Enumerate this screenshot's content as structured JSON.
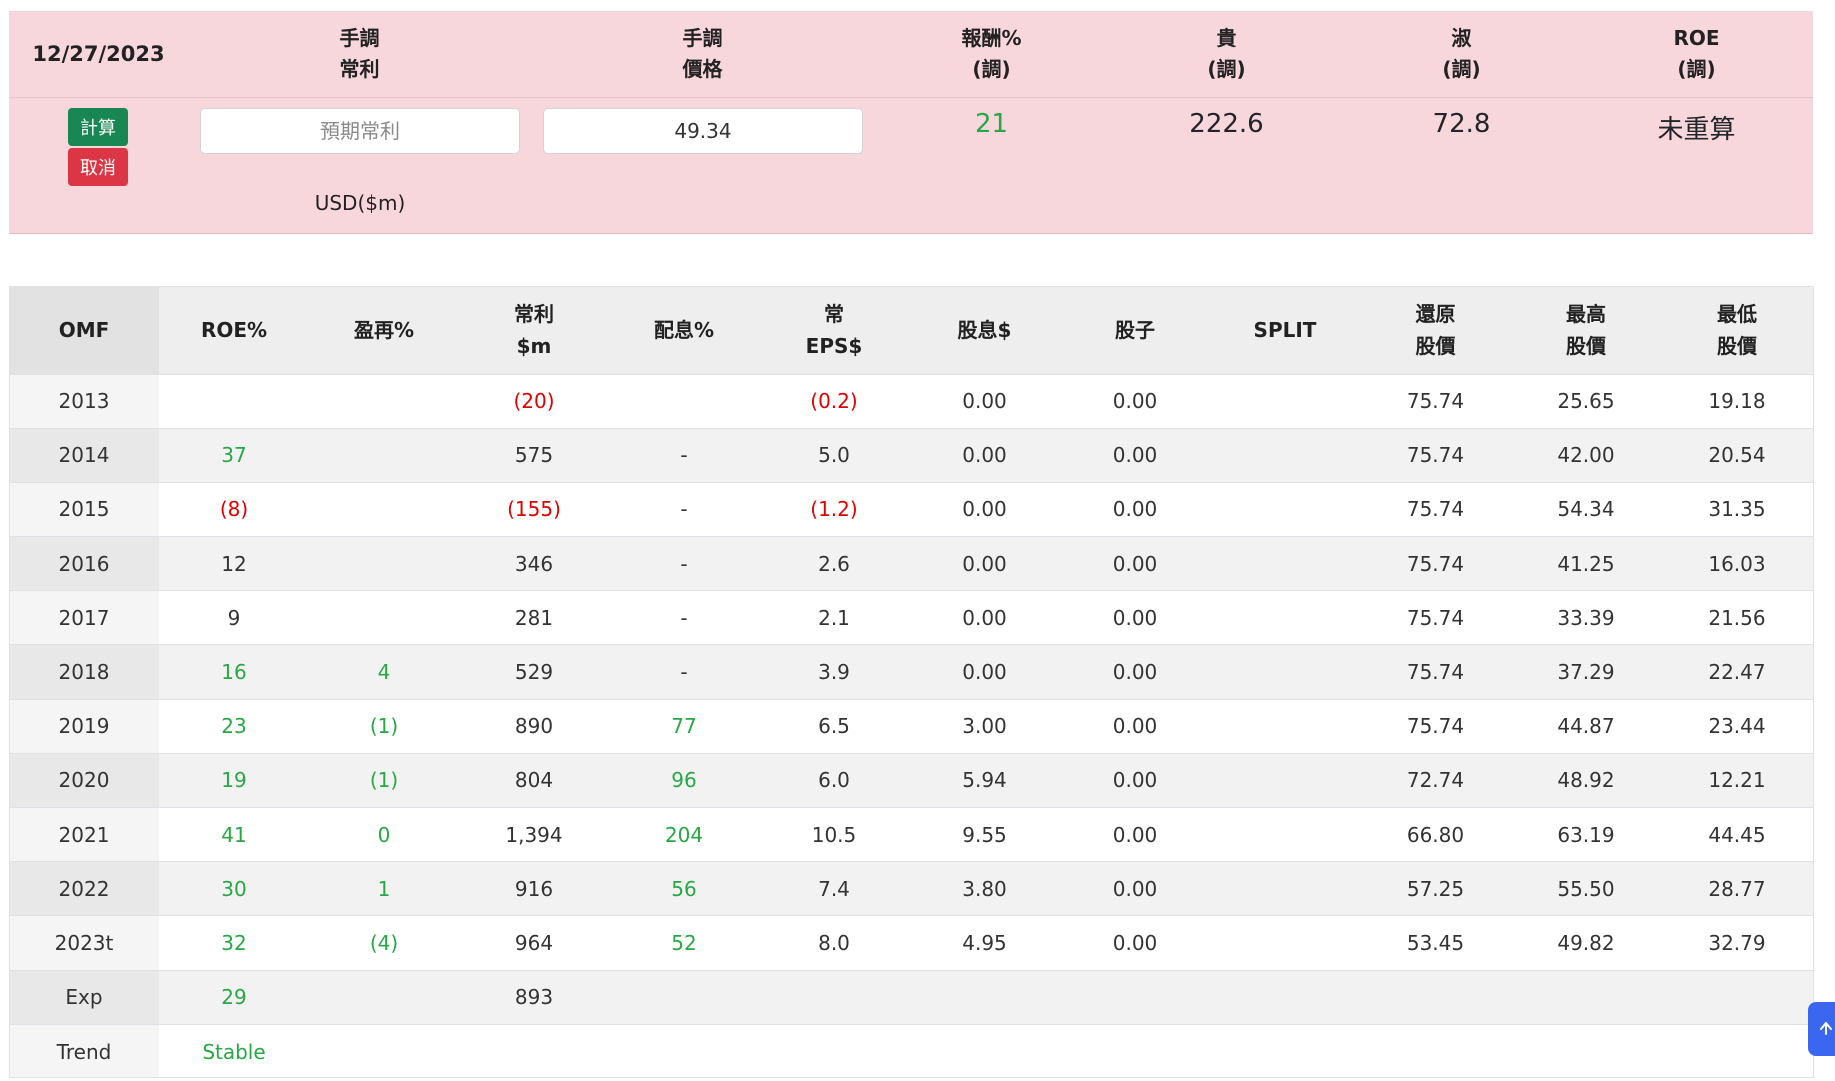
{
  "header": {
    "date": "12/27/2023",
    "columns": [
      {
        "line1": "手調",
        "line2": "常利"
      },
      {
        "line1": "手調",
        "line2": "價格"
      },
      {
        "line1": "報酬%",
        "line2": "(調)"
      },
      {
        "line1": "貴",
        "line2": "(調)"
      },
      {
        "line1": "淑",
        "line2": "(調)"
      },
      {
        "line1": "ROE",
        "line2": "(調)"
      }
    ]
  },
  "controls": {
    "calc_label": "計算",
    "cancel_label": "取消",
    "profit_placeholder": "預期常利",
    "profit_value": "",
    "price_value": "49.34",
    "currency_label": "USD($m)"
  },
  "summary": {
    "return_pct": "21",
    "expensive": "222.6",
    "cheap": "72.8",
    "roe": "未重算"
  },
  "colors": {
    "positive": "#28a745",
    "negative": "#e00000",
    "panel": "#f7d7dc",
    "calc_button": "#198754",
    "cancel_button": "#dc3545"
  },
  "table": {
    "headers": [
      {
        "line1": "OMF",
        "line2": ""
      },
      {
        "line1": "ROE%",
        "line2": ""
      },
      {
        "line1": "盈再%",
        "line2": ""
      },
      {
        "line1": "常利",
        "line2": "$m"
      },
      {
        "line1": "配息%",
        "line2": ""
      },
      {
        "line1": "常",
        "line2": "EPS$"
      },
      {
        "line1": "股息$",
        "line2": ""
      },
      {
        "line1": "股子",
        "line2": ""
      },
      {
        "line1": "SPLIT",
        "line2": ""
      },
      {
        "line1": "還原",
        "line2": "股價"
      },
      {
        "line1": "最高",
        "line2": "股價"
      },
      {
        "line1": "最低",
        "line2": "股價"
      }
    ],
    "rows": [
      [
        "2013",
        "",
        "",
        "(20)",
        "",
        "(0.2)",
        "0.00",
        "0.00",
        "",
        "75.74",
        "25.65",
        "19.18"
      ],
      [
        "2014",
        "37",
        "",
        "575",
        "-",
        "5.0",
        "0.00",
        "0.00",
        "",
        "75.74",
        "42.00",
        "20.54"
      ],
      [
        "2015",
        "(8)",
        "",
        "(155)",
        "-",
        "(1.2)",
        "0.00",
        "0.00",
        "",
        "75.74",
        "54.34",
        "31.35"
      ],
      [
        "2016",
        "12",
        "",
        "346",
        "-",
        "2.6",
        "0.00",
        "0.00",
        "",
        "75.74",
        "41.25",
        "16.03"
      ],
      [
        "2017",
        "9",
        "",
        "281",
        "-",
        "2.1",
        "0.00",
        "0.00",
        "",
        "75.74",
        "33.39",
        "21.56"
      ],
      [
        "2018",
        "16",
        "4",
        "529",
        "-",
        "3.9",
        "0.00",
        "0.00",
        "",
        "75.74",
        "37.29",
        "22.47"
      ],
      [
        "2019",
        "23",
        "(1)",
        "890",
        "77",
        "6.5",
        "3.00",
        "0.00",
        "",
        "75.74",
        "44.87",
        "23.44"
      ],
      [
        "2020",
        "19",
        "(1)",
        "804",
        "96",
        "6.0",
        "5.94",
        "0.00",
        "",
        "72.74",
        "48.92",
        "12.21"
      ],
      [
        "2021",
        "41",
        "0",
        "1,394",
        "204",
        "10.5",
        "9.55",
        "0.00",
        "",
        "66.80",
        "63.19",
        "44.45"
      ],
      [
        "2022",
        "30",
        "1",
        "916",
        "56",
        "7.4",
        "3.80",
        "0.00",
        "",
        "57.25",
        "55.50",
        "28.77"
      ],
      [
        "2023t",
        "32",
        "(4)",
        "964",
        "52",
        "8.0",
        "4.95",
        "0.00",
        "",
        "53.45",
        "49.82",
        "32.79"
      ],
      [
        "Exp",
        "29",
        "",
        "893",
        "",
        "",
        "",
        "",
        "",
        "",
        "",
        ""
      ],
      [
        "Trend",
        "Stable",
        "",
        "",
        "",
        "",
        "",
        "",
        "",
        "",
        "",
        ""
      ]
    ],
    "cell_colors": [
      [
        "",
        "",
        "",
        "red",
        "",
        "red",
        "",
        "",
        "",
        "",
        "",
        ""
      ],
      [
        "",
        "green",
        "",
        "",
        "",
        "",
        "",
        "",
        "",
        "",
        "",
        ""
      ],
      [
        "",
        "red",
        "",
        "red",
        "",
        "red",
        "",
        "",
        "",
        "",
        "",
        ""
      ],
      [
        "",
        "",
        "",
        "",
        "",
        "",
        "",
        "",
        "",
        "",
        "",
        ""
      ],
      [
        "",
        "",
        "",
        "",
        "",
        "",
        "",
        "",
        "",
        "",
        "",
        ""
      ],
      [
        "",
        "green",
        "green",
        "",
        "",
        "",
        "",
        "",
        "",
        "",
        "",
        ""
      ],
      [
        "",
        "green",
        "green",
        "",
        "green",
        "",
        "",
        "",
        "",
        "",
        "",
        ""
      ],
      [
        "",
        "green",
        "green",
        "",
        "green",
        "",
        "",
        "",
        "",
        "",
        "",
        ""
      ],
      [
        "",
        "green",
        "green",
        "",
        "green",
        "",
        "",
        "",
        "",
        "",
        "",
        ""
      ],
      [
        "",
        "green",
        "green",
        "",
        "green",
        "",
        "",
        "",
        "",
        "",
        "",
        ""
      ],
      [
        "",
        "green",
        "green",
        "",
        "green",
        "",
        "",
        "",
        "",
        "",
        "",
        ""
      ],
      [
        "",
        "green",
        "",
        "",
        "",
        "",
        "",
        "",
        "",
        "",
        "",
        ""
      ],
      [
        "",
        "green",
        "",
        "",
        "",
        "",
        "",
        "",
        "",
        "",
        "",
        ""
      ]
    ]
  },
  "scroll_top_icon": "arrow-up-icon"
}
